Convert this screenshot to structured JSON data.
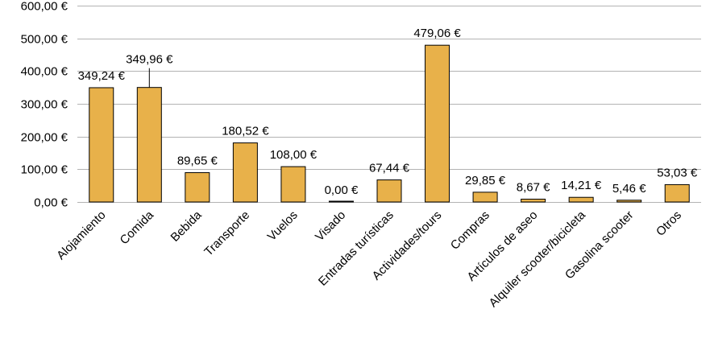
{
  "chart_data": {
    "type": "bar",
    "title": "",
    "xlabel": "",
    "ylabel": "",
    "categories": [
      "Alojamiento",
      "Comida",
      "Bebida",
      "Transporte",
      "Vuelos",
      "Visado",
      "Entradas turísticas",
      "Actividades/tours",
      "Compras",
      "Artículos de aseo",
      "Alquiler scooter/bicicleta",
      "Gasolina scooter",
      "Otros"
    ],
    "values": [
      349.24,
      349.96,
      89.65,
      180.52,
      108.0,
      0.0,
      67.44,
      479.06,
      29.85,
      8.67,
      14.21,
      5.46,
      53.03
    ],
    "data_labels": [
      "349,24 €",
      "349,96 €",
      "89,65 €",
      "180,52 €",
      "108,00 €",
      "0,00 €",
      "67,44 €",
      "479,06 €",
      "29,85 €",
      "8,67 €",
      "14,21 €",
      "5,46 €",
      "53,03 €"
    ],
    "ylim": [
      0,
      600
    ],
    "y_ticks": [
      0,
      100,
      200,
      300,
      400,
      500,
      600
    ],
    "y_tick_labels": [
      "0,00 €",
      "100,00 €",
      "200,00 €",
      "300,00 €",
      "400,00 €",
      "500,00 €",
      "600,00 €"
    ],
    "grid": true,
    "bar_color": "#E8B14A",
    "bar_edge_color": "#000000",
    "grid_color": "#B3B3B3"
  }
}
